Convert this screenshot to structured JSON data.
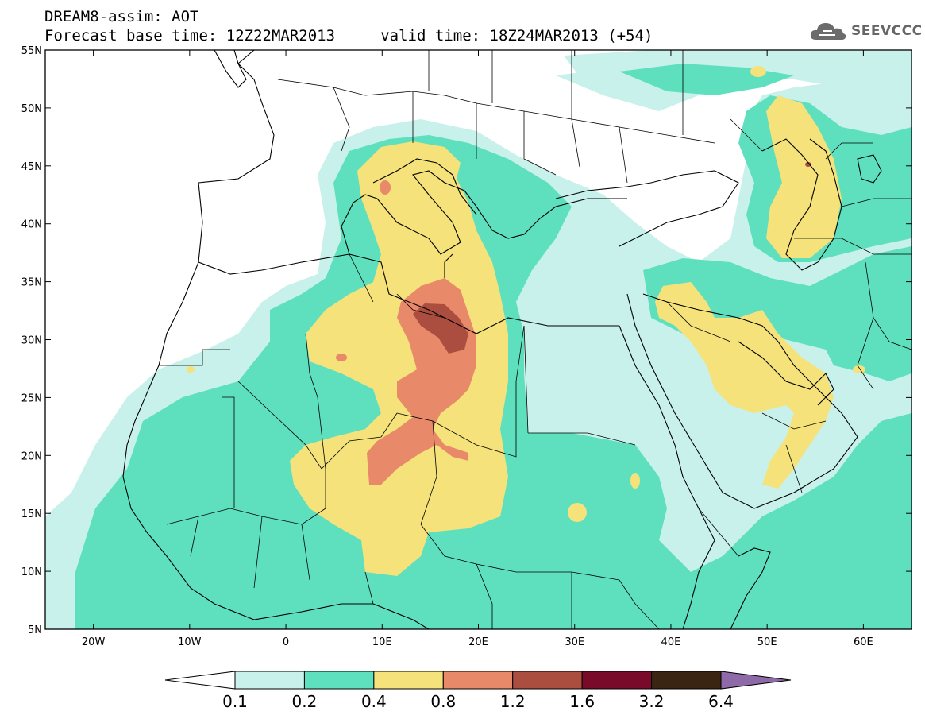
{
  "header": {
    "line1": "DREAM8-assim: AOT",
    "line2": "Forecast base time: 12Z22MAR2013     valid time: 18Z24MAR2013 (+54)"
  },
  "logo": {
    "text": "SEEVCCC",
    "icon": "cloud-icon"
  },
  "map": {
    "lon_range": [
      -25,
      65
    ],
    "lat_range": [
      5,
      55
    ],
    "lat_ticks": [
      "5N",
      "10N",
      "15N",
      "20N",
      "25N",
      "30N",
      "35N",
      "40N",
      "45N",
      "50N",
      "55N"
    ],
    "lon_ticks": [
      "20W",
      "10W",
      "0",
      "10E",
      "20E",
      "30E",
      "40E",
      "50E",
      "60E"
    ]
  },
  "colorbar": {
    "labels": [
      "0.1",
      "0.2",
      "0.4",
      "0.8",
      "1.2",
      "1.6",
      "3.2",
      "6.4"
    ],
    "colors": [
      "#ffffff",
      "#c8f1eb",
      "#5ee0bf",
      "#f5e27a",
      "#e8896a",
      "#ab4e40",
      "#7a0a2a",
      "#3a2512",
      "#8e6aa8"
    ]
  }
}
